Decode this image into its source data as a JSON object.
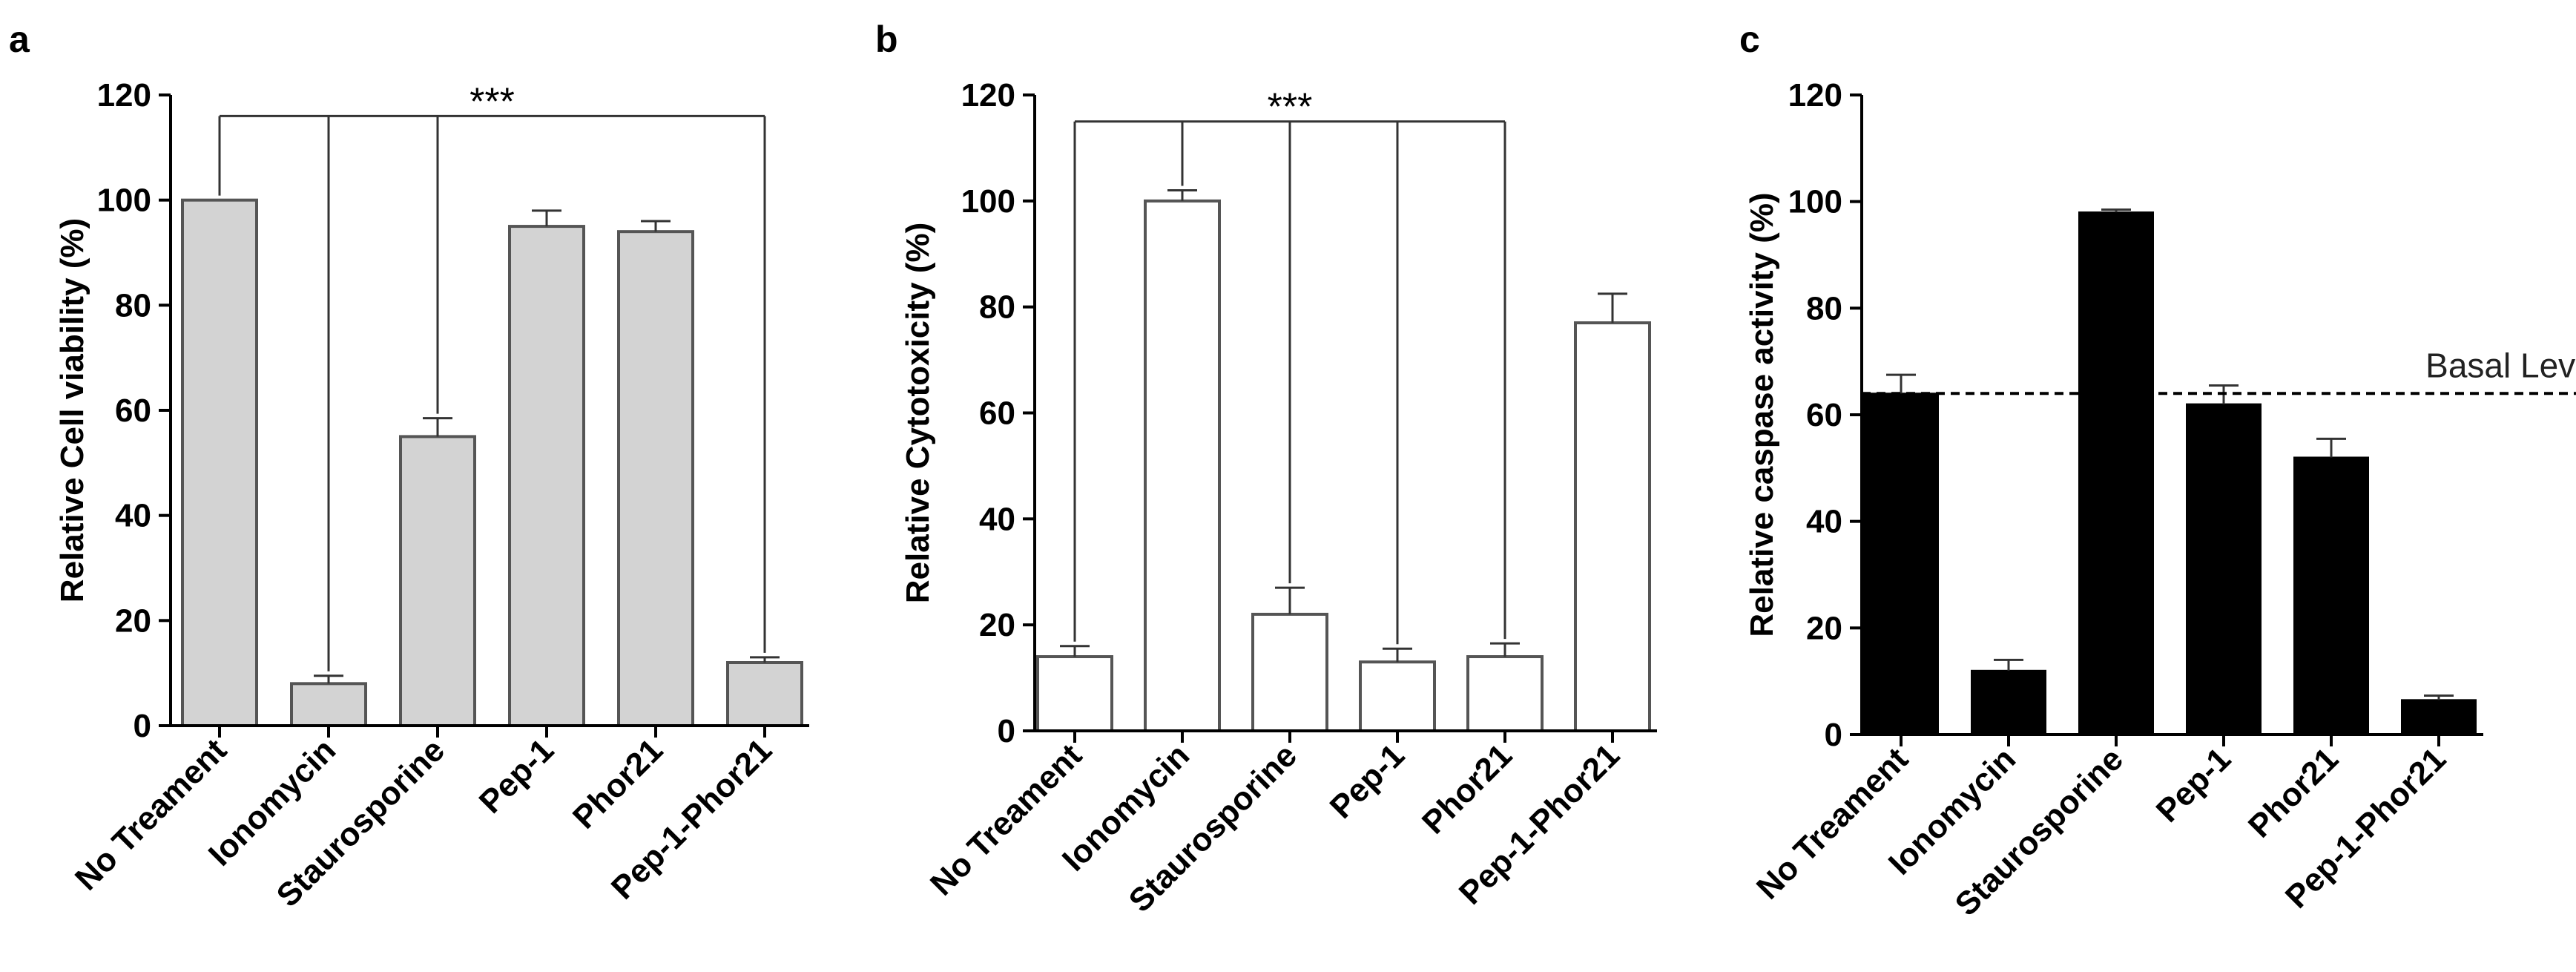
{
  "chart_data": [
    {
      "panel": "a",
      "type": "bar",
      "ylabel": "Relative Cell viability (%)",
      "ylim": [
        0,
        120
      ],
      "yticks": [
        0,
        20,
        40,
        60,
        80,
        100,
        120
      ],
      "categories": [
        "No Treament",
        "Ionomycin",
        "Staurosporine",
        "Pep-1",
        "Phor21",
        "Pep-1-Phor21"
      ],
      "values": [
        100,
        8,
        55,
        95,
        94,
        12
      ],
      "errors": [
        0,
        1.5,
        3.5,
        3,
        2,
        1
      ],
      "colors": {
        "fill": "#d3d3d3",
        "stroke": "#555555"
      },
      "significance": {
        "label": "***",
        "bracket_y": 116,
        "bars": [
          0,
          1,
          2,
          5
        ]
      }
    },
    {
      "panel": "b",
      "type": "bar",
      "ylabel": "Relative Cytotoxicity (%)",
      "ylim": [
        0,
        120
      ],
      "yticks": [
        0,
        20,
        40,
        60,
        80,
        100,
        120
      ],
      "categories": [
        "No Treament",
        "Ionomycin",
        "Staurosporine",
        "Pep-1",
        "Phor21",
        "Pep-1-Phor21"
      ],
      "values": [
        14,
        100,
        22,
        13,
        14,
        77
      ],
      "errors": [
        2,
        2,
        5,
        2.5,
        2.5,
        5.5
      ],
      "colors": {
        "fill": "#ffffff",
        "stroke": "#555555"
      },
      "significance": {
        "label": "***",
        "bracket_y": 115,
        "bars": [
          0,
          1,
          2,
          3,
          4
        ]
      }
    },
    {
      "panel": "c",
      "type": "bar",
      "ylabel": "Relative caspase activity (%)",
      "ylim": [
        0,
        120
      ],
      "yticks": [
        0,
        20,
        40,
        60,
        80,
        100,
        120
      ],
      "categories": [
        "No Treament",
        "Ionomycin",
        "Staurosporine",
        "Pep-1",
        "Phor21",
        "Pep-1-Phor21"
      ],
      "values": [
        64,
        12,
        98,
        62,
        52,
        6.5
      ],
      "errors": [
        3.5,
        2,
        0.5,
        3.5,
        3.5,
        0.8
      ],
      "colors": {
        "fill": "#000000",
        "stroke": "#000000"
      },
      "reference_line": {
        "label": "Basal Level",
        "value": 64,
        "style": "dashed"
      }
    }
  ]
}
